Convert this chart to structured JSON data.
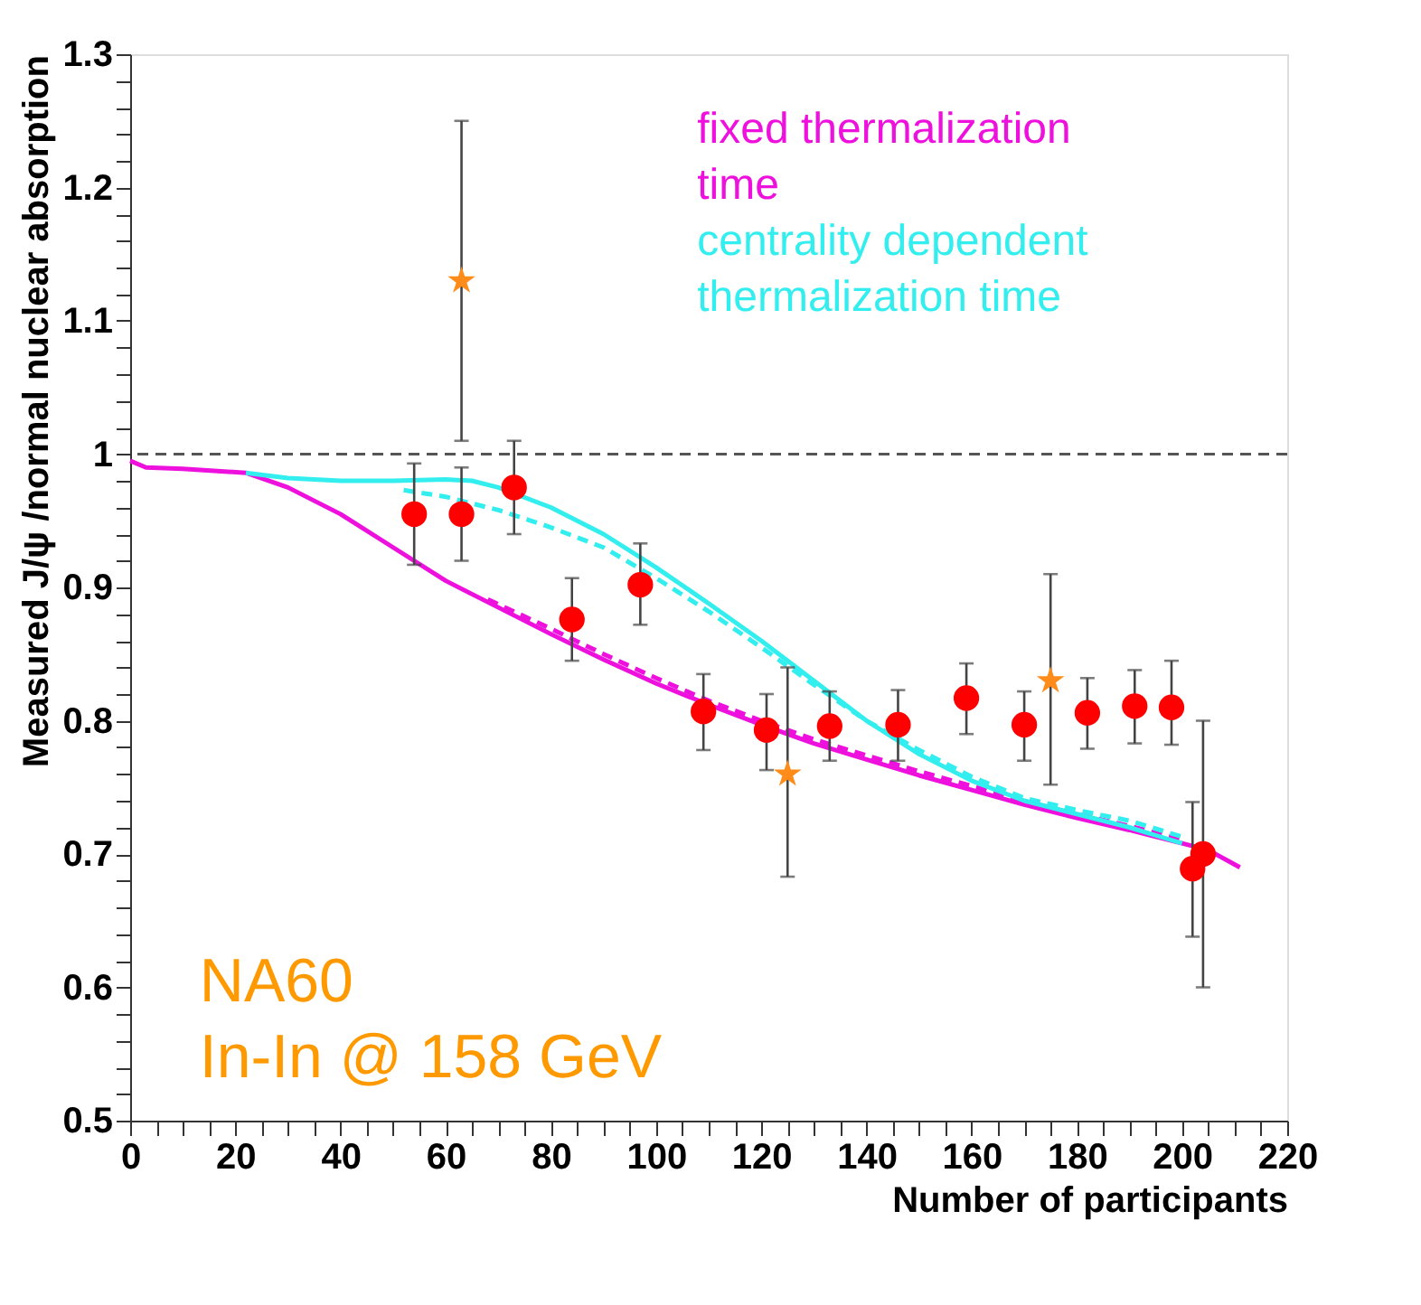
{
  "chart_data": {
    "type": "scatter",
    "xlabel": "Number of participants",
    "ylabel": "Measured J/ψ /normal nuclear absorption",
    "xlim": [
      0,
      220
    ],
    "ylim": [
      0.5,
      1.3
    ],
    "xticks": [
      0,
      {
        "value": 5,
        "label": null
      },
      {
        "value": 10,
        "label": null
      },
      {
        "value": 15,
        "label": null
      },
      20,
      {
        "value": 25,
        "label": null
      },
      {
        "value": 30,
        "label": null
      },
      {
        "value": 35,
        "label": null
      },
      40,
      {
        "value": 45,
        "label": null
      },
      {
        "value": 50,
        "label": null
      },
      {
        "value": 55,
        "label": null
      },
      60,
      {
        "value": 65,
        "label": null
      },
      {
        "value": 70,
        "label": null
      },
      {
        "value": 75,
        "label": null
      },
      80,
      {
        "value": 85,
        "label": null
      },
      {
        "value": 90,
        "label": null
      },
      {
        "value": 95,
        "label": null
      },
      100,
      {
        "value": 105,
        "label": null
      },
      {
        "value": 110,
        "label": null
      },
      {
        "value": 115,
        "label": null
      },
      120,
      {
        "value": 125,
        "label": null
      },
      {
        "value": 130,
        "label": null
      },
      {
        "value": 135,
        "label": null
      },
      140,
      {
        "value": 145,
        "label": null
      },
      {
        "value": 150,
        "label": null
      },
      {
        "value": 155,
        "label": null
      },
      160,
      {
        "value": 165,
        "label": null
      },
      {
        "value": 170,
        "label": null
      },
      {
        "value": 175,
        "label": null
      },
      180,
      {
        "value": 185,
        "label": null
      },
      {
        "value": 190,
        "label": null
      },
      {
        "value": 195,
        "label": null
      },
      200,
      {
        "value": 205,
        "label": null
      },
      {
        "value": 210,
        "label": null
      },
      {
        "value": 215,
        "label": null
      },
      220
    ],
    "yticks": [
      0.5,
      {
        "value": 0.52,
        "label": null
      },
      {
        "value": 0.54,
        "label": null
      },
      {
        "value": 0.56,
        "label": null
      },
      {
        "value": 0.58,
        "label": null
      },
      0.6,
      {
        "value": 0.62,
        "label": null
      },
      {
        "value": 0.64,
        "label": null
      },
      {
        "value": 0.66,
        "label": null
      },
      {
        "value": 0.68,
        "label": null
      },
      0.7,
      {
        "value": 0.72,
        "label": null
      },
      {
        "value": 0.74,
        "label": null
      },
      {
        "value": 0.76,
        "label": null
      },
      {
        "value": 0.78,
        "label": null
      },
      0.8,
      {
        "value": 0.82,
        "label": null
      },
      {
        "value": 0.84,
        "label": null
      },
      {
        "value": 0.86,
        "label": null
      },
      {
        "value": 0.88,
        "label": null
      },
      0.9,
      {
        "value": 0.92,
        "label": null
      },
      {
        "value": 0.94,
        "label": null
      },
      {
        "value": 0.96,
        "label": null
      },
      {
        "value": 0.98,
        "label": null
      },
      1,
      {
        "value": 1.02,
        "label": null
      },
      {
        "value": 1.04,
        "label": null
      },
      {
        "value": 1.06,
        "label": null
      },
      {
        "value": 1.08,
        "label": null
      },
      1.1,
      {
        "value": 1.12,
        "label": null
      },
      {
        "value": 1.14,
        "label": null
      },
      {
        "value": 1.16,
        "label": null
      },
      {
        "value": 1.18,
        "label": null
      },
      1.2,
      {
        "value": 1.22,
        "label": null
      },
      {
        "value": 1.24,
        "label": null
      },
      {
        "value": 1.26,
        "label": null
      },
      {
        "value": 1.28,
        "label": null
      },
      1.3
    ],
    "grid": false,
    "ref_lines": [
      {
        "axis": "y",
        "value": 1,
        "color": "#555555",
        "line_style": "dashed"
      }
    ],
    "annotations": [
      "NA60",
      "In-In @ 158 GeV"
    ],
    "series": [
      {
        "type": "line",
        "name": "fixed thermalization time",
        "color": "#ee11dd",
        "line_style": "solid",
        "x": [
          0,
          3,
          10,
          22,
          30,
          40,
          50,
          60,
          70,
          80,
          90,
          100,
          110,
          120,
          130,
          140,
          150,
          160,
          170,
          180,
          190,
          200,
          205,
          211
        ],
        "values": [
          0.995,
          0.99,
          0.989,
          0.986,
          0.975,
          0.955,
          0.93,
          0.905,
          0.885,
          0.865,
          0.846,
          0.828,
          0.812,
          0.797,
          0.783,
          0.771,
          0.759,
          0.748,
          0.737,
          0.727,
          0.718,
          0.708,
          0.703,
          0.69
        ]
      },
      {
        "type": "line",
        "color": "#ee11dd",
        "line_style": "dashed",
        "x": [
          68,
          80,
          90,
          100,
          110,
          120,
          130,
          140,
          150,
          160,
          170,
          180,
          190,
          200
        ],
        "values": [
          0.891,
          0.869,
          0.85,
          0.832,
          0.815,
          0.8,
          0.786,
          0.774,
          0.762,
          0.751,
          0.74,
          0.73,
          0.721,
          0.711
        ]
      },
      {
        "type": "line",
        "name": "centrality dependent thermalization time",
        "color": "#33eeee",
        "line_style": "solid",
        "x": [
          22,
          30,
          40,
          50,
          60,
          65,
          70,
          80,
          90,
          100,
          110,
          120,
          130,
          140,
          150,
          160,
          170,
          180,
          190,
          200
        ],
        "values": [
          0.986,
          0.982,
          0.98,
          0.98,
          0.981,
          0.98,
          0.975,
          0.96,
          0.94,
          0.915,
          0.888,
          0.86,
          0.83,
          0.8,
          0.775,
          0.755,
          0.74,
          0.73,
          0.72,
          0.708
        ]
      },
      {
        "type": "line",
        "color": "#33eeee",
        "line_style": "dashed",
        "x": [
          52,
          60,
          70,
          80,
          90,
          100,
          110,
          120,
          130,
          140,
          150,
          160,
          170,
          180,
          190,
          200
        ],
        "values": [
          0.973,
          0.968,
          0.958,
          0.945,
          0.93,
          0.907,
          0.882,
          0.855,
          0.827,
          0.8,
          0.778,
          0.758,
          0.742,
          0.733,
          0.725,
          0.713
        ]
      },
      {
        "type": "scatter",
        "marker": "circle",
        "color": "#ff0000",
        "x": [
          54,
          63,
          73,
          84,
          97,
          109,
          121,
          133,
          146,
          159,
          170,
          182,
          191,
          198,
          202,
          204
        ],
        "values": [
          0.955,
          0.955,
          0.975,
          0.876,
          0.902,
          0.807,
          0.793,
          0.796,
          0.797,
          0.817,
          0.797,
          0.806,
          0.811,
          0.81,
          0.689,
          0.7
        ],
        "errors": [
          [
            0.917,
            0.993
          ],
          [
            0.92,
            0.99
          ],
          [
            0.94,
            1.01
          ],
          [
            0.845,
            0.907
          ],
          [
            0.872,
            0.933
          ],
          [
            0.778,
            0.835
          ],
          [
            0.763,
            0.82
          ],
          [
            0.77,
            0.822
          ],
          [
            0.77,
            0.823
          ],
          [
            0.79,
            0.843
          ],
          [
            0.77,
            0.822
          ],
          [
            0.779,
            0.832
          ],
          [
            0.783,
            0.838
          ],
          [
            0.782,
            0.845
          ],
          [
            0.638,
            0.739
          ],
          [
            0.6,
            0.8
          ]
        ]
      },
      {
        "type": "scatter",
        "marker": "star",
        "color": "#ff8c1a",
        "x": [
          63,
          125,
          175
        ],
        "values": [
          1.13,
          0.76,
          0.83
        ],
        "errors": [
          [
            1.01,
            1.25
          ],
          [
            0.683,
            0.84
          ],
          [
            0.752,
            0.91
          ]
        ]
      }
    ]
  }
}
